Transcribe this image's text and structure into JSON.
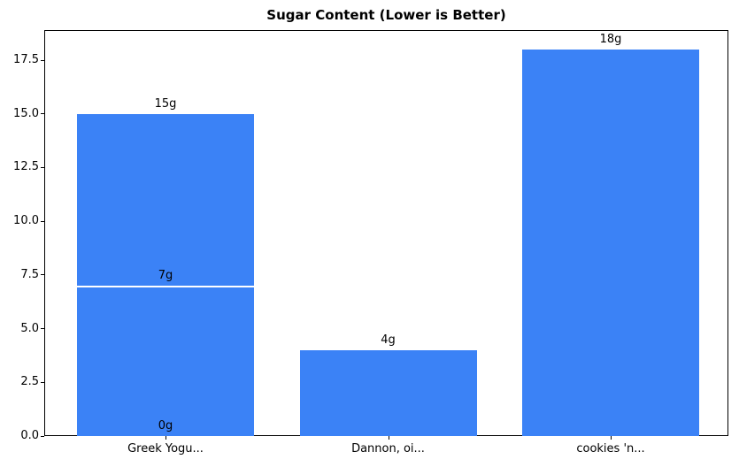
{
  "chart_data": {
    "type": "bar",
    "title": "Sugar Content (Lower is Better)",
    "categories": [
      "Greek Yogu...",
      "Dannon, oi...",
      "cookies 'n..."
    ],
    "bars": [
      {
        "category": "Greek Yogu...",
        "category_index": 0,
        "value": 15,
        "label": "15g",
        "white_divider": false
      },
      {
        "category": "Greek Yogu...",
        "category_index": 0,
        "value": 7,
        "label": "7g",
        "white_divider": true
      },
      {
        "category": "Greek Yogu...",
        "category_index": 0,
        "value": 0,
        "label": "0g",
        "white_divider": false
      },
      {
        "category": "Dannon, oi...",
        "category_index": 1,
        "value": 4,
        "label": "4g",
        "white_divider": false
      },
      {
        "category": "cookies 'n...",
        "category_index": 2,
        "value": 18,
        "label": "18g",
        "white_divider": false
      }
    ],
    "ytick_labels": [
      "0.0",
      "2.5",
      "5.0",
      "7.5",
      "10.0",
      "12.5",
      "15.0",
      "17.5"
    ],
    "ytick_values": [
      0,
      2.5,
      5,
      7.5,
      10,
      12.5,
      15,
      17.5
    ],
    "ylim": [
      0,
      18.9
    ],
    "xlabel": "",
    "ylabel": "",
    "grid": false,
    "legend": "none",
    "bar_color": "#3b82f6",
    "divider_color": "#ffffff",
    "axis_color": "#000000",
    "text_color": "#000000",
    "background_color": "#ffffff"
  }
}
